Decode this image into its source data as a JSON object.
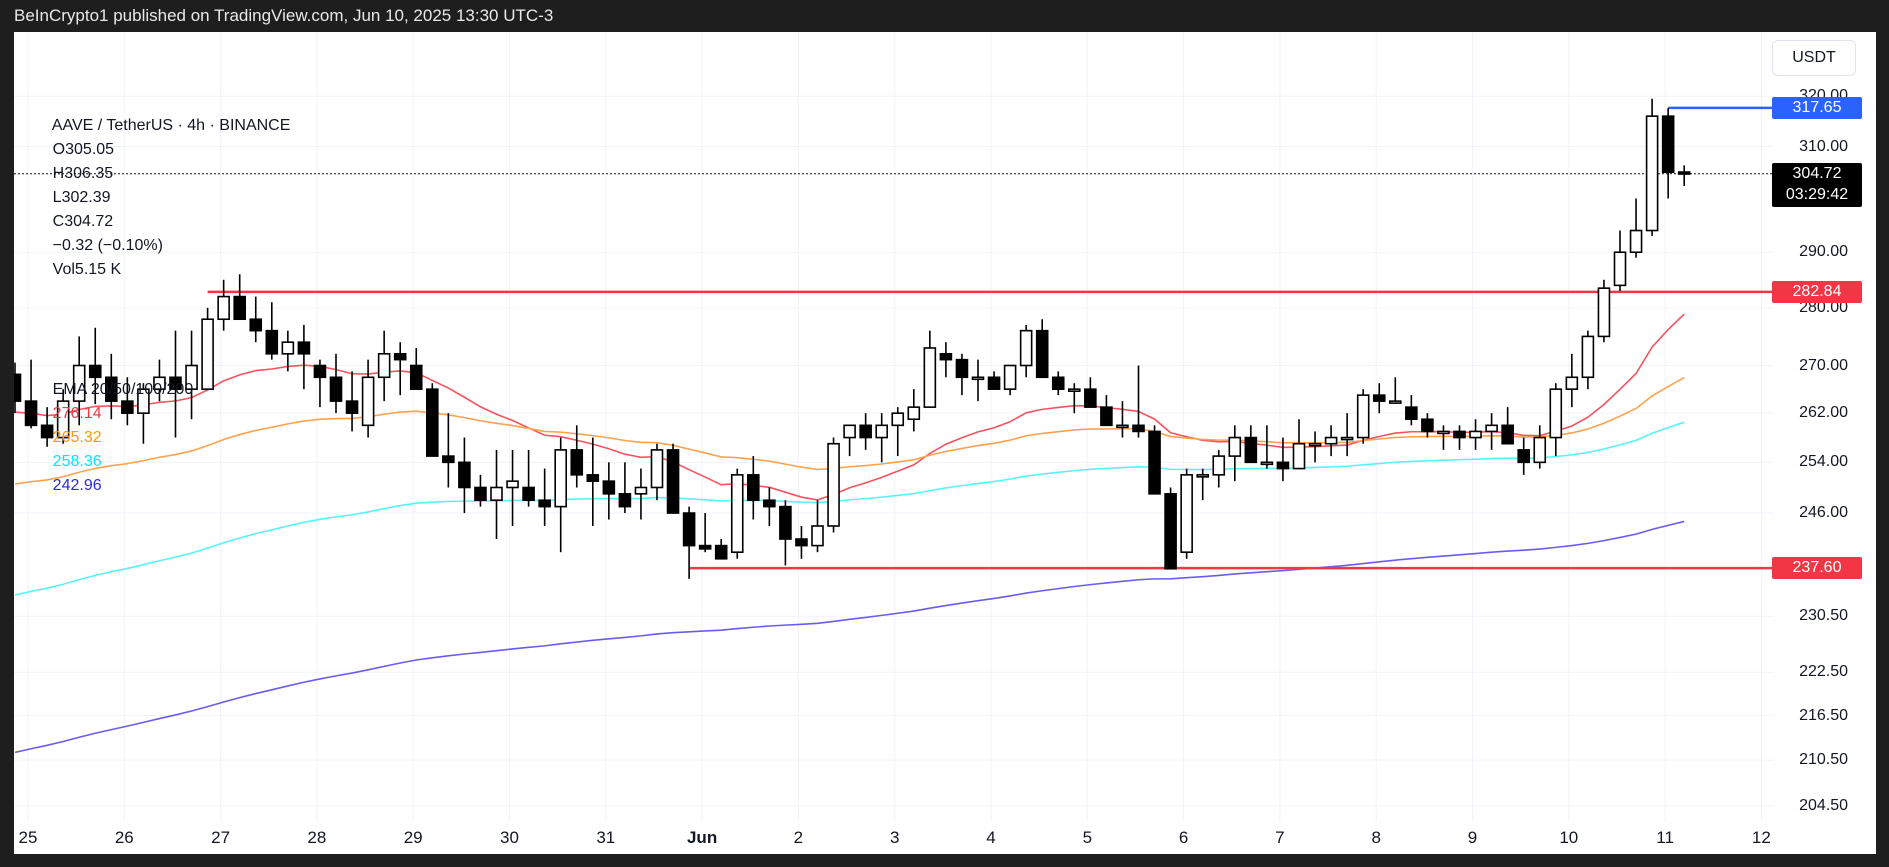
{
  "header": {
    "publisher_line": "BeInCrypto1 published on TradingView.com, Jun 10, 2025 13:30 UTC-3"
  },
  "legend": {
    "symbol": "AAVE / TetherUS · 4h · BINANCE",
    "open": "O305.05",
    "high": "H306.35",
    "low": "L302.39",
    "close": "C304.72",
    "change": "−0.32 (−0.10%)",
    "volume": "Vol5.15 K",
    "ema_label": "EMA 20/50/100/200",
    "ema_values": [
      "276.14",
      "265.32",
      "258.36",
      "242.96"
    ],
    "ema_colors": [
      "#f23645",
      "#ff9800",
      "#00e5ff",
      "#2a2ae0"
    ]
  },
  "currency_button": "USDT",
  "price_tags": {
    "high": {
      "value": "317.65",
      "color": "#2962ff"
    },
    "current": {
      "value": "304.72",
      "countdown": "03:29:42",
      "color": "#000000"
    },
    "resistance": {
      "value": "282.84",
      "color": "#f23645"
    },
    "support": {
      "value": "237.60",
      "color": "#f23645"
    }
  },
  "chart_data": {
    "type": "candlestick",
    "title": "AAVE / TetherUS · 4h · BINANCE",
    "xlabel": "",
    "ylabel": "USDT",
    "y_scale": "log",
    "ylim": [
      201,
      324
    ],
    "y_ticks": [
      "320.00",
      "310.00",
      "290.00",
      "280.00",
      "270.00",
      "262.00",
      "254.00",
      "246.00",
      "230.50",
      "222.50",
      "216.50",
      "210.50",
      "204.50"
    ],
    "x_ticks": [
      "25",
      "26",
      "27",
      "28",
      "29",
      "30",
      "31",
      "Jun",
      "2",
      "3",
      "4",
      "5",
      "6",
      "7",
      "8",
      "9",
      "10",
      "11",
      "12"
    ],
    "horizontal_lines": [
      {
        "label": "317.65",
        "value": 317.65,
        "color": "#2962ff"
      },
      {
        "label": "282.84",
        "value": 282.84,
        "color": "#f23645"
      },
      {
        "label": "237.60",
        "value": 237.6,
        "color": "#f23645"
      }
    ],
    "last_price": 304.72,
    "candles_ohlc": [
      [
        268.5,
        270.5,
        262,
        264
      ],
      [
        264,
        271,
        259.5,
        260
      ],
      [
        260,
        263,
        256.5,
        258
      ],
      [
        258,
        266,
        257,
        264
      ],
      [
        264,
        275,
        260,
        270
      ],
      [
        270,
        276.5,
        263.5,
        268
      ],
      [
        268,
        272,
        261,
        264
      ],
      [
        264,
        268,
        260,
        262
      ],
      [
        262,
        267,
        257,
        266
      ],
      [
        266,
        271,
        264,
        268
      ],
      [
        268,
        276,
        258,
        266
      ],
      [
        266,
        276,
        261,
        270
      ],
      [
        266,
        280,
        266,
        278
      ],
      [
        278,
        285,
        276,
        282
      ],
      [
        282,
        286,
        279,
        278
      ],
      [
        278,
        282,
        274,
        276
      ],
      [
        276,
        281,
        271,
        272
      ],
      [
        272,
        276,
        269,
        274
      ],
      [
        274,
        277,
        266,
        272
      ],
      [
        270,
        271,
        263,
        268
      ],
      [
        268,
        272,
        262,
        264
      ],
      [
        264,
        269,
        259,
        262
      ],
      [
        260,
        271,
        258,
        268
      ],
      [
        268,
        276,
        264,
        272
      ],
      [
        272,
        274,
        265,
        271
      ],
      [
        270,
        273,
        267,
        266
      ],
      [
        266,
        267,
        255,
        255
      ],
      [
        255,
        262,
        250,
        254
      ],
      [
        254,
        258,
        246,
        250
      ],
      [
        250,
        252,
        247,
        248
      ],
      [
        248,
        256,
        242,
        250
      ],
      [
        250,
        256,
        244,
        251
      ],
      [
        250,
        256,
        247,
        248
      ],
      [
        248,
        253,
        244,
        247
      ],
      [
        247,
        258,
        240,
        256
      ],
      [
        256,
        260,
        250,
        252
      ],
      [
        252,
        258,
        244,
        251
      ],
      [
        251,
        254,
        245,
        249
      ],
      [
        249,
        254,
        246,
        247
      ],
      [
        249,
        253,
        245,
        250
      ],
      [
        250,
        257,
        248,
        256
      ],
      [
        256,
        257,
        246,
        246
      ],
      [
        246,
        247,
        236,
        241
      ],
      [
        241,
        246,
        240,
        240.5
      ],
      [
        241,
        242,
        239,
        239
      ],
      [
        240,
        253,
        239,
        252
      ],
      [
        252,
        255,
        245,
        248
      ],
      [
        248,
        250,
        244,
        247
      ],
      [
        247,
        248,
        238,
        242
      ],
      [
        242,
        244,
        239,
        241
      ],
      [
        241,
        248,
        240,
        244
      ],
      [
        244,
        258,
        243,
        257
      ],
      [
        258,
        260,
        255,
        260
      ],
      [
        260,
        262,
        256,
        258
      ],
      [
        258,
        262,
        254,
        260
      ],
      [
        260,
        263,
        255,
        262
      ],
      [
        261,
        266,
        259,
        263
      ],
      [
        263,
        276,
        264,
        273
      ],
      [
        272,
        274,
        268,
        271
      ],
      [
        271,
        272,
        265,
        268
      ],
      [
        268,
        271,
        264,
        268
      ],
      [
        268,
        269,
        266,
        266
      ],
      [
        266,
        268,
        265,
        270
      ],
      [
        270,
        277,
        268,
        276
      ],
      [
        276,
        278,
        270,
        268
      ],
      [
        268,
        269,
        265,
        266
      ],
      [
        266,
        267,
        262,
        266
      ],
      [
        266,
        268,
        264,
        263
      ],
      [
        263,
        265,
        260,
        260
      ],
      [
        260,
        264,
        258,
        260
      ],
      [
        260,
        270,
        258,
        259
      ],
      [
        259,
        260,
        249,
        249
      ],
      [
        249,
        250,
        240,
        237.5
      ],
      [
        240,
        253,
        239,
        252
      ],
      [
        252,
        253,
        248,
        252
      ],
      [
        252,
        256,
        250,
        255
      ],
      [
        255,
        260,
        251,
        258
      ],
      [
        258,
        260,
        255,
        254
      ],
      [
        254,
        260,
        253,
        254
      ],
      [
        254,
        258,
        251,
        253
      ],
      [
        253,
        261,
        253,
        257
      ],
      [
        257,
        259,
        254,
        257
      ],
      [
        257,
        260,
        255,
        258
      ],
      [
        258,
        262,
        255,
        258
      ],
      [
        258,
        266,
        257,
        265
      ],
      [
        265,
        267,
        262,
        264
      ],
      [
        264,
        268,
        264,
        264
      ],
      [
        263,
        265,
        260,
        261
      ],
      [
        261,
        262,
        258,
        259
      ],
      [
        259,
        260,
        256,
        259
      ],
      [
        259,
        260,
        256,
        258
      ],
      [
        258,
        261,
        256,
        259
      ],
      [
        259,
        262,
        256,
        260
      ],
      [
        260,
        263,
        258,
        257
      ],
      [
        256,
        258,
        252,
        254
      ],
      [
        254,
        260,
        253,
        258
      ],
      [
        258,
        267,
        255,
        266
      ],
      [
        266,
        272,
        263,
        268
      ],
      [
        268,
        276,
        266,
        275
      ],
      [
        275,
        285,
        274,
        283.5
      ],
      [
        284,
        294,
        283,
        290
      ],
      [
        290,
        300,
        289,
        294
      ],
      [
        294,
        319.5,
        293,
        316
      ],
      [
        316,
        317.6,
        300,
        305
      ],
      [
        305.05,
        306.35,
        302.39,
        304.72
      ]
    ]
  }
}
